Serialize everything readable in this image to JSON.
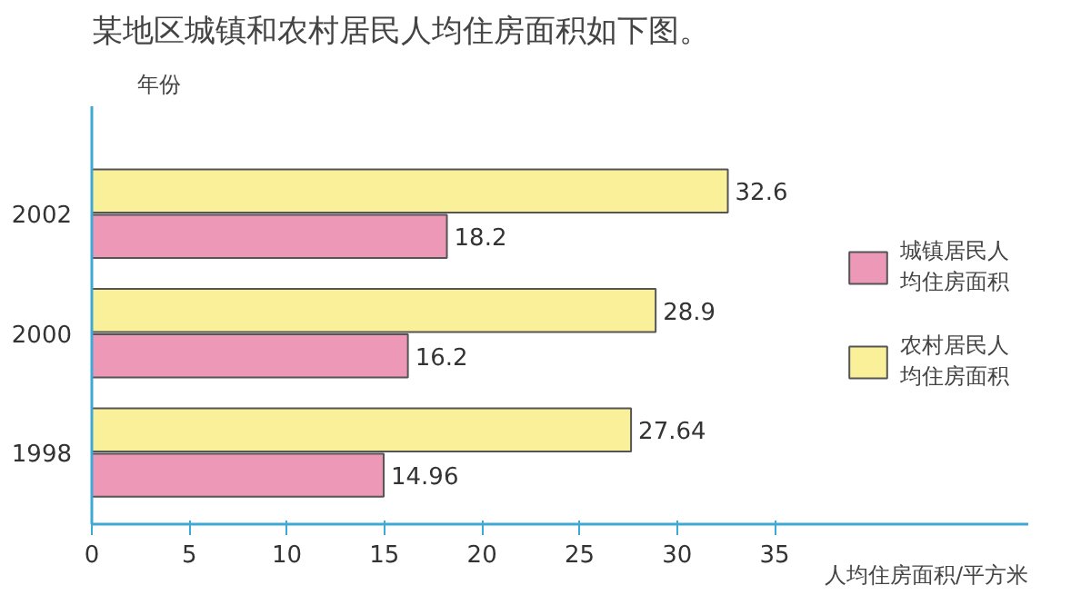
{
  "chart_data": {
    "type": "bar",
    "orientation": "horizontal",
    "title": "某地区城镇和农村居民人均住房面积如下图。",
    "ylabel": "年份",
    "xlabel": "人均住房面积/平方米",
    "categories": [
      "2002",
      "2000",
      "1998"
    ],
    "series": [
      {
        "name": "城镇居民人均住房面积",
        "color": "#ee98b8",
        "values": [
          18.2,
          16.2,
          14.96
        ]
      },
      {
        "name": "农村居民人均住房面积",
        "color": "#fbf09a",
        "values": [
          32.6,
          28.9,
          27.64
        ]
      }
    ],
    "xlim": [
      0,
      48
    ],
    "xticks": [
      0,
      5,
      10,
      15,
      20,
      25,
      30,
      35
    ],
    "data_labels": true,
    "grid": false,
    "legend": "right"
  }
}
